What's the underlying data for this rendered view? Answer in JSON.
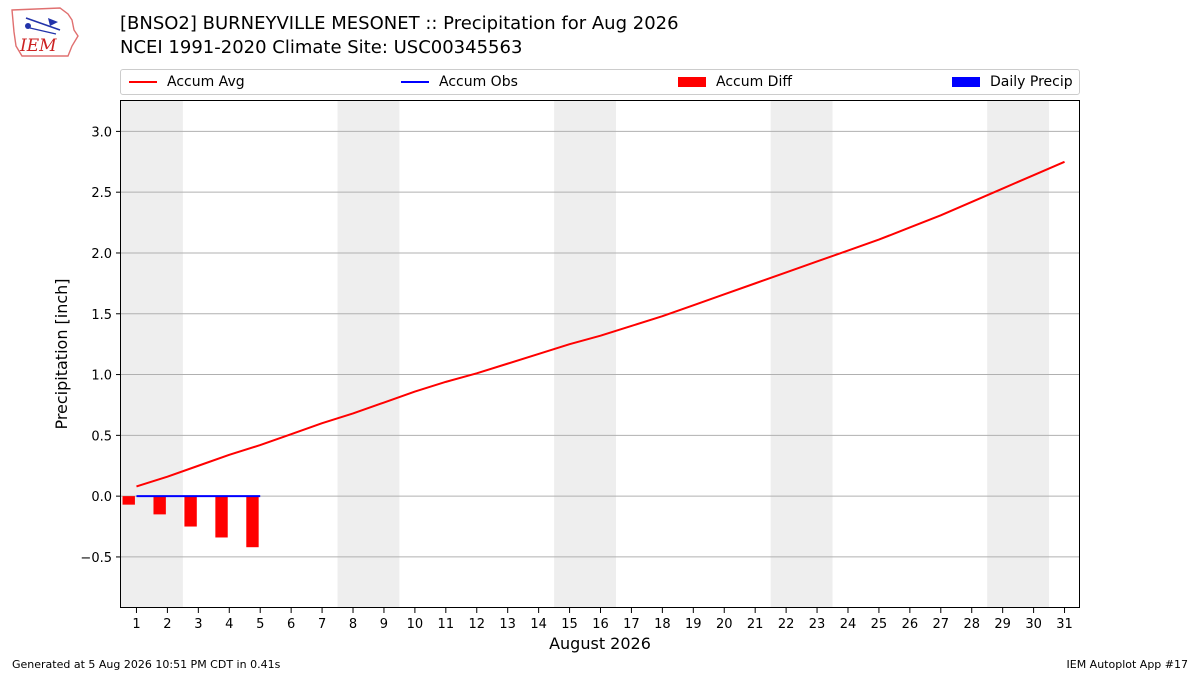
{
  "title": "[BNSO2] BURNEYVILLE MESONET :: Precipitation for Aug 2026",
  "subtitle": "NCEI 1991-2020 Climate Site: USC00345563",
  "logo_text": "IEM",
  "footer_left": "Generated at 5 Aug 2026 10:51 PM CDT in 0.41s",
  "footer_right": "IEM Autoplot App #17",
  "legend": [
    {
      "label": "Accum Avg",
      "type": "line",
      "color": "#ff0000"
    },
    {
      "label": "Accum Obs",
      "type": "line",
      "color": "#0000ff"
    },
    {
      "label": "Accum Diff",
      "type": "bar",
      "color": "#ff0000"
    },
    {
      "label": "Daily Precip",
      "type": "bar",
      "color": "#0000ff"
    }
  ],
  "chart_data": {
    "type": "line",
    "xlabel": "August 2026",
    "ylabel": "Precipitation [inch]",
    "xlim": [
      0.5,
      31.5
    ],
    "ylim": [
      -0.92,
      3.25
    ],
    "yticks": [
      -0.5,
      0.0,
      0.5,
      1.0,
      1.5,
      2.0,
      2.5,
      3.0
    ],
    "ytick_labels": [
      "−0.5",
      "0.0",
      "0.5",
      "1.0",
      "1.5",
      "2.0",
      "2.5",
      "3.0"
    ],
    "xticks": [
      1,
      2,
      3,
      4,
      5,
      6,
      7,
      8,
      9,
      10,
      11,
      12,
      13,
      14,
      15,
      16,
      17,
      18,
      19,
      20,
      21,
      22,
      23,
      24,
      25,
      26,
      27,
      28,
      29,
      30,
      31
    ],
    "grid": "y",
    "weekend_shading": [
      [
        0.5,
        2.5
      ],
      [
        7.5,
        9.5
      ],
      [
        14.5,
        16.5
      ],
      [
        21.5,
        23.5
      ],
      [
        28.5,
        30.5
      ]
    ],
    "series": [
      {
        "name": "Accum Avg",
        "type": "line",
        "color": "#ff0000",
        "x": [
          1,
          2,
          3,
          4,
          5,
          6,
          7,
          8,
          9,
          10,
          11,
          12,
          13,
          14,
          15,
          16,
          17,
          18,
          19,
          20,
          21,
          22,
          23,
          24,
          25,
          26,
          27,
          28,
          29,
          30,
          31
        ],
        "values": [
          0.08,
          0.16,
          0.25,
          0.34,
          0.42,
          0.51,
          0.6,
          0.68,
          0.77,
          0.86,
          0.94,
          1.01,
          1.09,
          1.17,
          1.25,
          1.32,
          1.4,
          1.48,
          1.57,
          1.66,
          1.75,
          1.84,
          1.93,
          2.02,
          2.11,
          2.21,
          2.31,
          2.42,
          2.53,
          2.64,
          2.75
        ]
      },
      {
        "name": "Accum Obs",
        "type": "line",
        "color": "#0000ff",
        "x": [
          1,
          2,
          3,
          4,
          5
        ],
        "values": [
          0.0,
          0.0,
          0.0,
          0.0,
          0.0
        ]
      },
      {
        "name": "Accum Diff",
        "type": "bar",
        "color": "#ff0000",
        "x": [
          1,
          2,
          3,
          4,
          5
        ],
        "values": [
          -0.07,
          -0.15,
          -0.25,
          -0.34,
          -0.42
        ]
      },
      {
        "name": "Daily Precip",
        "type": "bar",
        "color": "#0000ff",
        "x": [
          1,
          2,
          3,
          4,
          5
        ],
        "values": [
          0.0,
          0.0,
          0.0,
          0.0,
          0.0
        ]
      }
    ]
  }
}
